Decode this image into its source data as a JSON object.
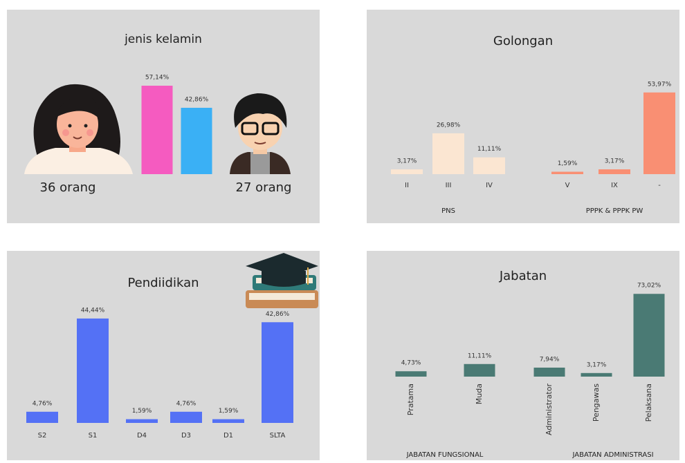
{
  "chart_data": [
    {
      "type": "bar",
      "title": "jenis kelamin",
      "groups": [
        {
          "categories": [
            "36 orang",
            "27 orang"
          ],
          "values": [
            57.14,
            42.86
          ],
          "value_labels": [
            "57,14%",
            "42,86%"
          ],
          "colors": [
            "#f55bc0",
            "#3ab0f5"
          ]
        }
      ]
    },
    {
      "type": "bar",
      "title": "Golongan",
      "groups": [
        {
          "name": "PNS",
          "color": "#fbe6d2",
          "categories": [
            "II",
            "III",
            "IV"
          ],
          "values": [
            3.17,
            26.98,
            11.11
          ],
          "value_labels": [
            "3,17%",
            "26,98%",
            "11,11%"
          ]
        },
        {
          "name": "PPPK & PPPK PW",
          "color": "#f98f73",
          "categories": [
            "V",
            "IX",
            "-"
          ],
          "values": [
            1.59,
            3.17,
            53.97
          ],
          "value_labels": [
            "1,59%",
            "3,17%",
            "53,97%"
          ]
        }
      ]
    },
    {
      "type": "bar",
      "title": "Pendiidikan",
      "groups": [
        {
          "color": "#5471f5",
          "categories": [
            "S2",
            "S1",
            "D4",
            "D3",
            "D1",
            "SLTA"
          ],
          "values": [
            4.76,
            44.44,
            1.59,
            4.76,
            1.59,
            42.86
          ],
          "value_labels": [
            "4,76%",
            "44,44%",
            "1,59%",
            "4,76%",
            "1,59%",
            "42,86%"
          ]
        }
      ]
    },
    {
      "type": "bar",
      "title": "Jabatan",
      "groups": [
        {
          "name": "JABATAN FUNGSIONAL",
          "color": "#4a7a74",
          "categories": [
            "Pratama",
            "Muda"
          ],
          "values": [
            4.73,
            11.11
          ],
          "value_labels": [
            "4,73%",
            "11,11%"
          ]
        },
        {
          "name": "JABATAN ADMINISTRASI",
          "color": "#4a7a74",
          "categories": [
            "Administrator",
            "Pengawas",
            "Pelaksana"
          ],
          "values": [
            7.94,
            3.17,
            73.02
          ],
          "value_labels": [
            "7,94%",
            "3,17%",
            "73,02%"
          ]
        }
      ]
    }
  ]
}
